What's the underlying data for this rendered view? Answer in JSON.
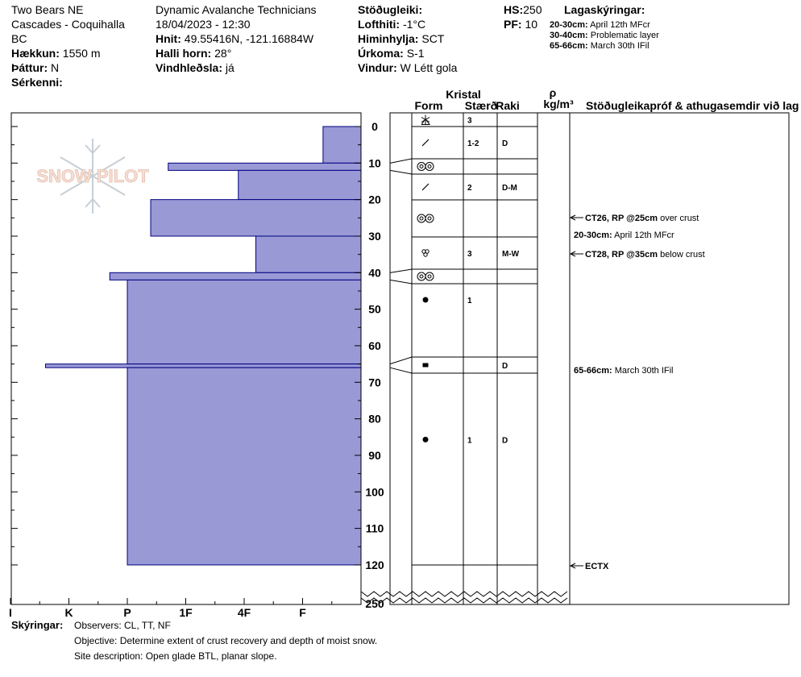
{
  "header": {
    "col1": {
      "line1": "Two Bears NE",
      "line2": "Cascades - Coquihalla",
      "line3": "BC",
      "elev_label": "Hækkun:",
      "elev_value": "1550 m",
      "aspect_label": "Þáttur:",
      "aspect_value": "N",
      "special_label": "Sérkenni:"
    },
    "col2": {
      "org": "Dynamic Avalanche Technicians",
      "datetime": "18/04/2023 - 12:30",
      "coords_label": "Hnit:",
      "coords_value": "49.55416N, -121.16884W",
      "slope_label": "Halli horn:",
      "slope_value": "28°",
      "windload_label": "Vindhleðsla:",
      "windload_value": "já"
    },
    "col3": {
      "stability_label": "Stöðugleiki:",
      "airtemp_label": "Lofthiti:",
      "airtemp_value": "-1°C",
      "sky_label": "Himinhylja:",
      "sky_value": "SCT",
      "precip_label": "Úrkoma:",
      "precip_value": "S-1",
      "wind_label": "Vindur:",
      "wind_value": "W Létt gola"
    },
    "col4": {
      "hs_label": "HS:",
      "hs_value": "250",
      "pf_label": "PF:",
      "pf_value": "10"
    },
    "layers_legend": {
      "title": "Lagaskýringar:",
      "items": [
        {
          "depth": "20-30cm:",
          "text": "April 12th MFcr"
        },
        {
          "depth": "30-40cm:",
          "text": "Problematic layer"
        },
        {
          "depth": "65-66cm:",
          "text": "March 30th IFil"
        }
      ]
    }
  },
  "logo_text": "SNOW PILOT",
  "table_headers": {
    "crystal": "Kristal",
    "form": "Form",
    "size": "Stærð",
    "moisture": "Raki",
    "density_symbol": "ρ",
    "density_unit": "kg/m³",
    "tests": "Stöðugleikapróf & athugasemdir við lag"
  },
  "footer": {
    "label": "Skýringar:",
    "observers": "Observers: CL, TT, NF",
    "objective": "Objective: Determine extent of crust recovery and depth of moist snow.",
    "site": "Site description: Open glade BTL, planar slope."
  },
  "chart_data": {
    "type": "bar",
    "orientation": "horizontal",
    "title": "",
    "xlabel": "",
    "ylabel": "",
    "hardness_ticks": [
      "I",
      "K",
      "P",
      "1F",
      "4F",
      "F"
    ],
    "depth_ticks": [
      "0",
      "10",
      "20",
      "30",
      "40",
      "50",
      "60",
      "70",
      "80",
      "90",
      "100",
      "110",
      "120",
      "250"
    ],
    "ylim": [
      0,
      120
    ],
    "hardness_scale_note": "hardness index: F=1, 4F=2, 1F=3, P=4, K=5, I=6",
    "layers": [
      {
        "top": 0,
        "bottom": 10,
        "hardness": 0.65
      },
      {
        "top": 10,
        "bottom": 12,
        "hardness": 3.3
      },
      {
        "top": 12,
        "bottom": 20,
        "hardness": 2.1
      },
      {
        "top": 20,
        "bottom": 30,
        "hardness": 3.6
      },
      {
        "top": 30,
        "bottom": 40,
        "hardness": 1.8
      },
      {
        "top": 40,
        "bottom": 42,
        "hardness": 4.3
      },
      {
        "top": 42,
        "bottom": 65,
        "hardness": 4.0
      },
      {
        "top": 65,
        "bottom": 66,
        "hardness": 5.4
      },
      {
        "top": 66,
        "bottom": 120,
        "hardness": 4.0
      }
    ],
    "grain_rows": [
      {
        "top": 0,
        "bottom": 0,
        "form": "snowflake-icon",
        "size": "3",
        "moisture": ""
      },
      {
        "top": 0,
        "bottom": 10,
        "form": "slash-icon",
        "size": "1-2",
        "moisture": "D"
      },
      {
        "top": 10,
        "bottom": 12,
        "form": "double-ring-icon",
        "size": "",
        "moisture": ""
      },
      {
        "top": 12,
        "bottom": 20,
        "form": "slash-icon",
        "size": "2",
        "moisture": "D-M"
      },
      {
        "top": 20,
        "bottom": 30,
        "form": "double-ring-icon",
        "size": "",
        "moisture": ""
      },
      {
        "top": 30,
        "bottom": 40,
        "form": "cluster-icon",
        "size": "3",
        "moisture": "M-W"
      },
      {
        "top": 40,
        "bottom": 42,
        "form": "double-ring-icon",
        "size": "",
        "moisture": ""
      },
      {
        "top": 42,
        "bottom": 65,
        "form": "dot-icon",
        "size": "1",
        "moisture": ""
      },
      {
        "top": 65,
        "bottom": 66,
        "form": "square-icon",
        "size": "",
        "moisture": "D"
      },
      {
        "top": 66,
        "bottom": 120,
        "form": "dot-icon",
        "size": "1",
        "moisture": "D"
      }
    ],
    "tests": [
      {
        "depth": 25,
        "arrow": true,
        "bold": "CT26, RP @25cm",
        "text": "over crust"
      },
      {
        "depth": 30,
        "arrow": false,
        "bold": "20-30cm:",
        "text": "April 12th MFcr"
      },
      {
        "depth": 35,
        "arrow": true,
        "bold": "CT28, RP @35cm",
        "text": "below crust"
      },
      {
        "depth": 66,
        "arrow": false,
        "bold": "65-66cm:",
        "text": "March 30th IFil"
      },
      {
        "depth": 120,
        "arrow": true,
        "bold": "ECTX",
        "text": ""
      }
    ],
    "colors": {
      "bar_fill": "#9999d6",
      "bar_stroke": "#000080"
    }
  }
}
